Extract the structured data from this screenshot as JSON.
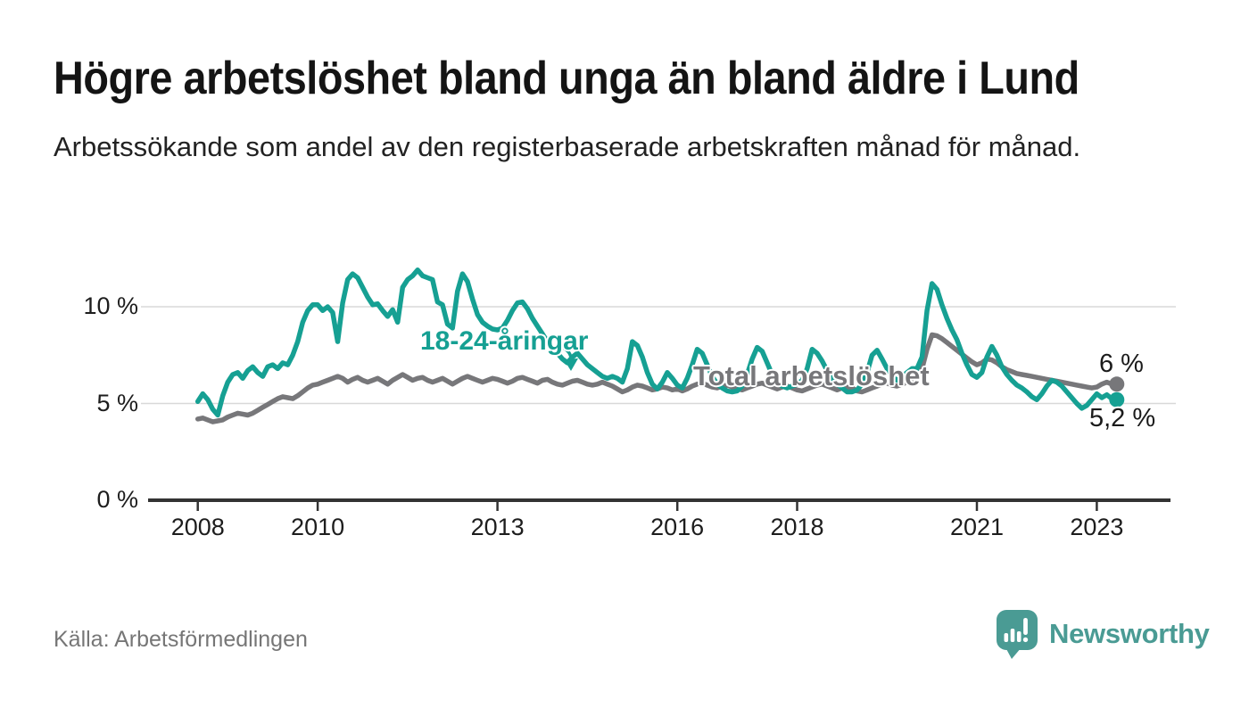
{
  "header": {
    "title": "Högre arbetslöshet bland unga än bland äldre i Lund",
    "subtitle": "Arbetssökande som andel av den registerbaserade arbetskraften månad för månad."
  },
  "colors": {
    "youth": "#16a093",
    "total": "#77777a",
    "grid": "#d8d8d8",
    "axis": "#333333",
    "text": "#1d1d1d",
    "muted_text": "#767676",
    "logo_teal": "#4a9b94"
  },
  "chart_data": {
    "type": "line",
    "unit": "%",
    "title": "Högre arbetslöshet bland unga än bland äldre i Lund",
    "xlabel": "",
    "ylabel": "",
    "grid": "horizontal",
    "legend_position": "inline-annotations",
    "x_start": 2008.0,
    "x_step": "monthly",
    "xlim": [
      2007.2,
      2024.2
    ],
    "ylim": [
      0,
      12.5
    ],
    "yticks": [
      {
        "value": 0,
        "label": "0 %"
      },
      {
        "value": 5,
        "label": "5 %"
      },
      {
        "value": 10,
        "label": "10 %"
      }
    ],
    "xticks": [
      {
        "value": 2008,
        "label": "2008"
      },
      {
        "value": 2010,
        "label": "2010"
      },
      {
        "value": 2013,
        "label": "2013"
      },
      {
        "value": 2016,
        "label": "2016"
      },
      {
        "value": 2018,
        "label": "2018"
      },
      {
        "value": 2021,
        "label": "2021"
      },
      {
        "value": 2023,
        "label": "2023"
      }
    ],
    "series": [
      {
        "key": "youth",
        "name": "18-24-åringar",
        "color_key": "youth",
        "end_label": "5,2 %",
        "end_value": 5.2,
        "values": [
          5.1,
          5.5,
          5.2,
          4.7,
          4.4,
          5.4,
          6.1,
          6.5,
          6.6,
          6.3,
          6.7,
          6.9,
          6.6,
          6.4,
          6.9,
          7.0,
          6.8,
          7.1,
          7.0,
          7.5,
          8.2,
          9.2,
          9.8,
          10.1,
          10.1,
          9.8,
          10.0,
          9.7,
          8.2,
          10.2,
          11.4,
          11.7,
          11.5,
          11.0,
          10.5,
          10.1,
          10.15,
          9.8,
          9.5,
          9.85,
          9.2,
          11.0,
          11.4,
          11.6,
          11.9,
          11.6,
          11.5,
          11.4,
          10.25,
          10.1,
          9.1,
          8.9,
          10.8,
          11.7,
          11.3,
          10.4,
          9.6,
          9.2,
          9.0,
          8.85,
          8.8,
          8.9,
          9.3,
          9.8,
          10.2,
          10.25,
          9.9,
          9.4,
          9.0,
          8.6,
          8.2,
          7.9,
          7.6,
          7.3,
          7.1,
          7.4,
          7.6,
          7.3,
          7.0,
          6.8,
          6.6,
          6.4,
          6.3,
          6.4,
          6.3,
          6.1,
          6.8,
          8.2,
          8.0,
          7.4,
          6.6,
          6.0,
          5.75,
          6.1,
          6.6,
          6.3,
          5.95,
          5.8,
          6.3,
          7.0,
          7.8,
          7.6,
          7.0,
          6.4,
          6.0,
          5.8,
          5.65,
          5.6,
          5.65,
          5.9,
          6.5,
          7.3,
          7.9,
          7.7,
          7.1,
          6.5,
          6.1,
          5.9,
          5.8,
          5.9,
          6.0,
          6.2,
          6.8,
          7.8,
          7.6,
          7.2,
          6.7,
          6.3,
          6.0,
          5.8,
          5.6,
          5.6,
          5.7,
          6.0,
          6.6,
          7.5,
          7.75,
          7.3,
          6.8,
          6.4,
          6.2,
          6.4,
          6.6,
          6.8,
          6.8,
          7.4,
          9.8,
          11.2,
          10.9,
          10.1,
          9.4,
          8.8,
          8.3,
          7.6,
          7.0,
          6.5,
          6.35,
          6.6,
          7.4,
          7.95,
          7.5,
          6.9,
          6.5,
          6.2,
          5.95,
          5.8,
          5.6,
          5.35,
          5.2,
          5.5,
          5.9,
          6.2,
          6.1,
          5.9,
          5.6,
          5.3,
          5.0,
          4.75,
          4.9,
          5.2,
          5.5,
          5.3,
          5.45,
          5.25,
          5.2
        ]
      },
      {
        "key": "total",
        "name": "Total arbetslöshet",
        "color_key": "total",
        "end_label": "6 %",
        "end_value": 6.0,
        "values": [
          4.2,
          4.25,
          4.15,
          4.05,
          4.1,
          4.15,
          4.3,
          4.4,
          4.5,
          4.45,
          4.4,
          4.5,
          4.65,
          4.8,
          4.95,
          5.1,
          5.25,
          5.35,
          5.3,
          5.25,
          5.4,
          5.6,
          5.8,
          5.95,
          6.0,
          6.1,
          6.2,
          6.3,
          6.4,
          6.3,
          6.1,
          6.25,
          6.35,
          6.2,
          6.1,
          6.2,
          6.3,
          6.15,
          6.0,
          6.2,
          6.35,
          6.5,
          6.35,
          6.2,
          6.3,
          6.35,
          6.2,
          6.1,
          6.2,
          6.3,
          6.15,
          6.0,
          6.15,
          6.3,
          6.4,
          6.3,
          6.2,
          6.1,
          6.2,
          6.3,
          6.25,
          6.15,
          6.05,
          6.15,
          6.3,
          6.35,
          6.25,
          6.15,
          6.05,
          6.2,
          6.25,
          6.1,
          6.0,
          5.95,
          6.05,
          6.15,
          6.2,
          6.1,
          6.0,
          5.95,
          6.0,
          6.1,
          6.0,
          5.9,
          5.75,
          5.6,
          5.7,
          5.85,
          5.95,
          5.9,
          5.8,
          5.7,
          5.75,
          5.85,
          5.8,
          5.7,
          5.75,
          5.65,
          5.75,
          5.9,
          6.0,
          6.05,
          5.95,
          5.85,
          5.8,
          5.9,
          5.95,
          5.85,
          5.75,
          5.7,
          5.8,
          5.9,
          6.0,
          6.05,
          5.95,
          5.85,
          5.75,
          5.85,
          5.9,
          5.8,
          5.7,
          5.65,
          5.75,
          5.85,
          5.95,
          6.0,
          5.9,
          5.8,
          5.7,
          5.8,
          5.85,
          5.8,
          5.65,
          5.6,
          5.7,
          5.8,
          5.9,
          6.0,
          6.05,
          5.95,
          5.9,
          6.0,
          6.1,
          6.2,
          6.35,
          6.8,
          7.8,
          8.55,
          8.5,
          8.35,
          8.15,
          7.95,
          7.75,
          7.55,
          7.35,
          7.15,
          7.0,
          7.1,
          7.3,
          7.25,
          7.1,
          6.9,
          6.75,
          6.65,
          6.55,
          6.5,
          6.45,
          6.4,
          6.35,
          6.3,
          6.25,
          6.2,
          6.15,
          6.1,
          6.05,
          6.0,
          5.95,
          5.9,
          5.85,
          5.8,
          5.85,
          6.0,
          6.1,
          6.0,
          6.0
        ]
      }
    ]
  },
  "footer": {
    "source": "Källa: Arbetsförmedlingen",
    "brand": "Newsworthy"
  }
}
